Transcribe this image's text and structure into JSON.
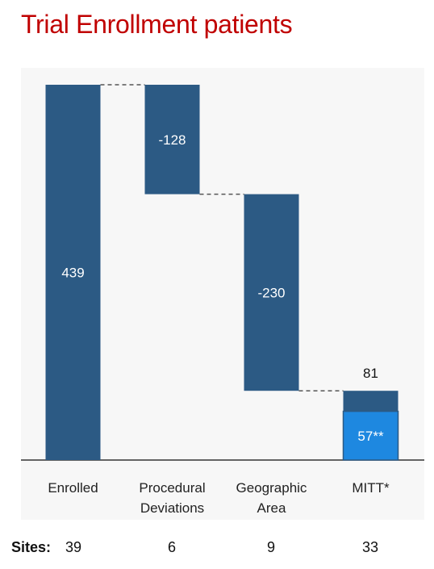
{
  "title": "Trial Enrollment patients",
  "chart_data": {
    "type": "bar",
    "subtype": "waterfall",
    "categories": [
      {
        "lines": [
          "Enrolled"
        ]
      },
      {
        "lines": [
          "Procedural",
          "Deviations"
        ]
      },
      {
        "lines": [
          "Geographic",
          "Area"
        ]
      },
      {
        "lines": [
          "MITT*"
        ]
      }
    ],
    "steps": [
      {
        "category": "Enrolled",
        "start": 0,
        "end": 439,
        "label": "439"
      },
      {
        "category": "Procedural Deviations",
        "start": 439,
        "end": 311,
        "label": "-128"
      },
      {
        "category": "Geographic Area",
        "start": 311,
        "end": 81,
        "label": "-230"
      },
      {
        "category": "MITT*",
        "start": 0,
        "end": 81,
        "label": "81",
        "label_position": "above"
      }
    ],
    "sub_bar": {
      "category": "MITT*",
      "value": 57,
      "label": "57**"
    },
    "ylim": [
      0,
      439
    ],
    "grid": false,
    "connectors": "dashed"
  },
  "colors": {
    "bar": "#2c5a84",
    "sub_bar": "#1e88e0",
    "title": "#c00000",
    "connector": "#555555"
  },
  "sites": {
    "label": "Sites:",
    "values": [
      "39",
      "6",
      "9",
      "33"
    ]
  }
}
